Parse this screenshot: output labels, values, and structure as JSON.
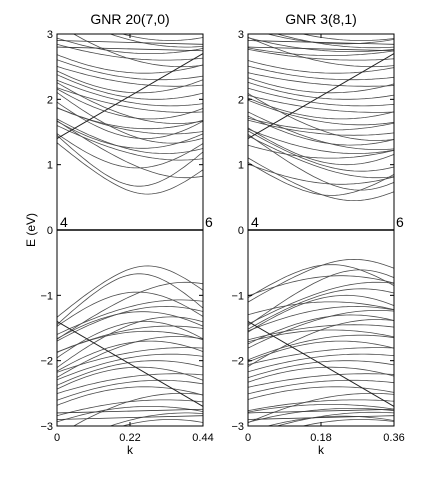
{
  "chart_data": [
    {
      "type": "line",
      "title": "GNR 20(7,0)",
      "xlabel": "k",
      "ylabel": "E (eV)",
      "xlim": [
        0,
        0.44
      ],
      "ylim": [
        -3,
        3
      ],
      "xticks": [
        "0",
        "0.22",
        "0.44"
      ],
      "yticks": [
        "−3",
        "−2",
        "−1",
        "0",
        "1",
        "2",
        "3"
      ],
      "annotations": [
        {
          "text": "4",
          "x": 0.0,
          "y": 0
        },
        {
          "text": "6",
          "x": 0.44,
          "y": 0
        }
      ],
      "crossing_k": 0.44,
      "conduction_band_minima_eV": [
        0.6,
        0.72,
        0.85,
        1.0,
        1.12,
        1.22,
        1.3,
        1.38,
        1.45,
        1.52,
        1.6,
        1.68,
        1.75,
        1.85,
        1.95,
        2.05,
        2.15,
        2.25,
        2.35,
        2.45,
        2.55,
        2.65,
        2.75,
        2.85,
        2.95
      ],
      "valence_band_maxima_eV": [
        -0.6,
        -0.72,
        -0.85,
        -1.0,
        -1.12,
        -1.22,
        -1.3,
        -1.38,
        -1.45,
        -1.52,
        -1.6,
        -1.68,
        -1.75,
        -1.85,
        -1.95,
        -2.05,
        -2.15,
        -2.25,
        -2.35,
        -2.45,
        -2.55,
        -2.65,
        -2.75,
        -2.85,
        -2.95
      ],
      "flat_band_eV": 0,
      "grid": false,
      "line_color": "#4d4d4d"
    },
    {
      "type": "line",
      "title": "GNR 3(8,1)",
      "xlabel": "k",
      "ylabel": "",
      "xlim": [
        0,
        0.36
      ],
      "ylim": [
        -3,
        3
      ],
      "xticks": [
        "0",
        "0.18",
        "0.36"
      ],
      "yticks": [
        "−3",
        "−2",
        "−1",
        "0",
        "1",
        "2",
        "3"
      ],
      "annotations": [
        {
          "text": "4",
          "x": 0.0,
          "y": 0
        },
        {
          "text": "6",
          "x": 0.36,
          "y": 0
        }
      ],
      "crossing_k": 0.36,
      "conduction_band_minima_eV": [
        0.5,
        0.58,
        0.66,
        0.75,
        0.85,
        0.95,
        1.05,
        1.15,
        1.22,
        1.28,
        1.35,
        1.42,
        1.5,
        1.58,
        1.66,
        1.75,
        1.85,
        1.95,
        2.05,
        2.15,
        2.25,
        2.35,
        2.45,
        2.55,
        2.65,
        2.72,
        2.78,
        2.84,
        2.9,
        2.95
      ],
      "valence_band_maxima_eV": [
        -0.5,
        -0.58,
        -0.66,
        -0.75,
        -0.85,
        -0.95,
        -1.05,
        -1.15,
        -1.22,
        -1.28,
        -1.35,
        -1.42,
        -1.5,
        -1.58,
        -1.66,
        -1.75,
        -1.85,
        -1.95,
        -2.05,
        -2.15,
        -2.25,
        -2.35,
        -2.45,
        -2.55,
        -2.65,
        -2.72,
        -2.78,
        -2.84,
        -2.9,
        -2.95
      ],
      "flat_band_eV": 0,
      "grid": false,
      "line_color": "#4d4d4d"
    }
  ]
}
